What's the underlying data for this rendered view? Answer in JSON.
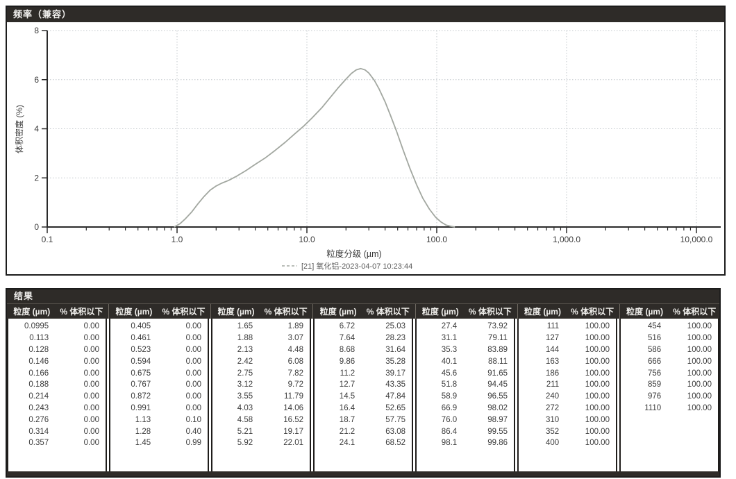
{
  "colors": {
    "panel_header_bg": "#2e2b28",
    "panel_border": "#1c1c1c",
    "curve": "#a2a7a0",
    "grid": "#c2c7cb",
    "axis": "#2a2a2a",
    "text": "#3a3a3a",
    "legend_text": "#5a5a5a",
    "table_text": "#3b3b3b"
  },
  "panels": {
    "chart": {
      "title": "频率（兼容）"
    },
    "results": {
      "title": "结果",
      "size_header": "粒度 (µm)",
      "pct_header": "% 体积以下",
      "groups": [
        {
          "rows": [
            [
              "0.0995",
              "0.00"
            ],
            [
              "0.113",
              "0.00"
            ],
            [
              "0.128",
              "0.00"
            ],
            [
              "0.146",
              "0.00"
            ],
            [
              "0.166",
              "0.00"
            ],
            [
              "0.188",
              "0.00"
            ],
            [
              "0.214",
              "0.00"
            ],
            [
              "0.243",
              "0.00"
            ],
            [
              "0.276",
              "0.00"
            ],
            [
              "0.314",
              "0.00"
            ],
            [
              "0.357",
              "0.00"
            ]
          ]
        },
        {
          "rows": [
            [
              "0.405",
              "0.00"
            ],
            [
              "0.461",
              "0.00"
            ],
            [
              "0.523",
              "0.00"
            ],
            [
              "0.594",
              "0.00"
            ],
            [
              "0.675",
              "0.00"
            ],
            [
              "0.767",
              "0.00"
            ],
            [
              "0.872",
              "0.00"
            ],
            [
              "0.991",
              "0.00"
            ],
            [
              "1.13",
              "0.10"
            ],
            [
              "1.28",
              "0.40"
            ],
            [
              "1.45",
              "0.99"
            ]
          ]
        },
        {
          "rows": [
            [
              "1.65",
              "1.89"
            ],
            [
              "1.88",
              "3.07"
            ],
            [
              "2.13",
              "4.48"
            ],
            [
              "2.42",
              "6.08"
            ],
            [
              "2.75",
              "7.82"
            ],
            [
              "3.12",
              "9.72"
            ],
            [
              "3.55",
              "11.79"
            ],
            [
              "4.03",
              "14.06"
            ],
            [
              "4.58",
              "16.52"
            ],
            [
              "5.21",
              "19.17"
            ],
            [
              "5.92",
              "22.01"
            ]
          ]
        },
        {
          "rows": [
            [
              "6.72",
              "25.03"
            ],
            [
              "7.64",
              "28.23"
            ],
            [
              "8.68",
              "31.64"
            ],
            [
              "9.86",
              "35.28"
            ],
            [
              "11.2",
              "39.17"
            ],
            [
              "12.7",
              "43.35"
            ],
            [
              "14.5",
              "47.84"
            ],
            [
              "16.4",
              "52.65"
            ],
            [
              "18.7",
              "57.75"
            ],
            [
              "21.2",
              "63.08"
            ],
            [
              "24.1",
              "68.52"
            ]
          ]
        },
        {
          "rows": [
            [
              "27.4",
              "73.92"
            ],
            [
              "31.1",
              "79.11"
            ],
            [
              "35.3",
              "83.89"
            ],
            [
              "40.1",
              "88.11"
            ],
            [
              "45.6",
              "91.65"
            ],
            [
              "51.8",
              "94.45"
            ],
            [
              "58.9",
              "96.55"
            ],
            [
              "66.9",
              "98.02"
            ],
            [
              "76.0",
              "98.97"
            ],
            [
              "86.4",
              "99.55"
            ],
            [
              "98.1",
              "99.86"
            ]
          ]
        },
        {
          "rows": [
            [
              "111",
              "100.00"
            ],
            [
              "127",
              "100.00"
            ],
            [
              "144",
              "100.00"
            ],
            [
              "163",
              "100.00"
            ],
            [
              "186",
              "100.00"
            ],
            [
              "211",
              "100.00"
            ],
            [
              "240",
              "100.00"
            ],
            [
              "272",
              "100.00"
            ],
            [
              "310",
              "100.00"
            ],
            [
              "352",
              "100.00"
            ],
            [
              "400",
              "100.00"
            ]
          ]
        },
        {
          "rows": [
            [
              "454",
              "100.00"
            ],
            [
              "516",
              "100.00"
            ],
            [
              "586",
              "100.00"
            ],
            [
              "666",
              "100.00"
            ],
            [
              "756",
              "100.00"
            ],
            [
              "859",
              "100.00"
            ],
            [
              "976",
              "100.00"
            ],
            [
              "1110",
              "100.00"
            ]
          ]
        }
      ]
    }
  },
  "chart_data": {
    "type": "line",
    "title": "频率（兼容）",
    "xlabel": "粒度分级 (µm)",
    "ylabel": "体积密度 (%)",
    "x_scale": "log",
    "xlim": [
      0.1,
      10000
    ],
    "ylim": [
      0,
      8
    ],
    "x_ticks": [
      0.1,
      1,
      10,
      100,
      1000,
      10000
    ],
    "x_tick_labels": [
      "0.1",
      "1.0",
      "10.0",
      "100.0",
      "1,000.0",
      "10,000.0"
    ],
    "y_ticks": [
      0,
      2,
      4,
      6,
      8
    ],
    "y_tick_labels": [
      "0",
      "2",
      "4",
      "6",
      "8"
    ],
    "grid": true,
    "legend_position": "bottom",
    "series": [
      {
        "name": "[21] 氧化铝-2023-04-07 10:23:44",
        "color": "#a2a7a0",
        "points": [
          [
            0.95,
            0
          ],
          [
            1.05,
            0.13
          ],
          [
            1.15,
            0.32
          ],
          [
            1.3,
            0.62
          ],
          [
            1.45,
            0.95
          ],
          [
            1.6,
            1.22
          ],
          [
            1.8,
            1.5
          ],
          [
            2.0,
            1.67
          ],
          [
            2.2,
            1.78
          ],
          [
            2.5,
            1.9
          ],
          [
            2.9,
            2.08
          ],
          [
            3.4,
            2.3
          ],
          [
            4.0,
            2.55
          ],
          [
            4.8,
            2.82
          ],
          [
            5.7,
            3.12
          ],
          [
            6.8,
            3.45
          ],
          [
            8.0,
            3.78
          ],
          [
            9.5,
            4.12
          ],
          [
            11,
            4.45
          ],
          [
            13,
            4.85
          ],
          [
            15,
            5.25
          ],
          [
            17.5,
            5.68
          ],
          [
            20,
            6.02
          ],
          [
            22,
            6.25
          ],
          [
            24,
            6.4
          ],
          [
            26,
            6.45
          ],
          [
            28,
            6.4
          ],
          [
            30,
            6.27
          ],
          [
            33,
            5.98
          ],
          [
            36,
            5.62
          ],
          [
            40,
            5.1
          ],
          [
            44,
            4.55
          ],
          [
            49,
            3.9
          ],
          [
            55,
            3.15
          ],
          [
            62,
            2.4
          ],
          [
            70,
            1.72
          ],
          [
            78,
            1.18
          ],
          [
            88,
            0.72
          ],
          [
            98,
            0.4
          ],
          [
            108,
            0.2
          ],
          [
            118,
            0.08
          ],
          [
            128,
            0.03
          ],
          [
            138,
            0
          ]
        ]
      }
    ]
  }
}
